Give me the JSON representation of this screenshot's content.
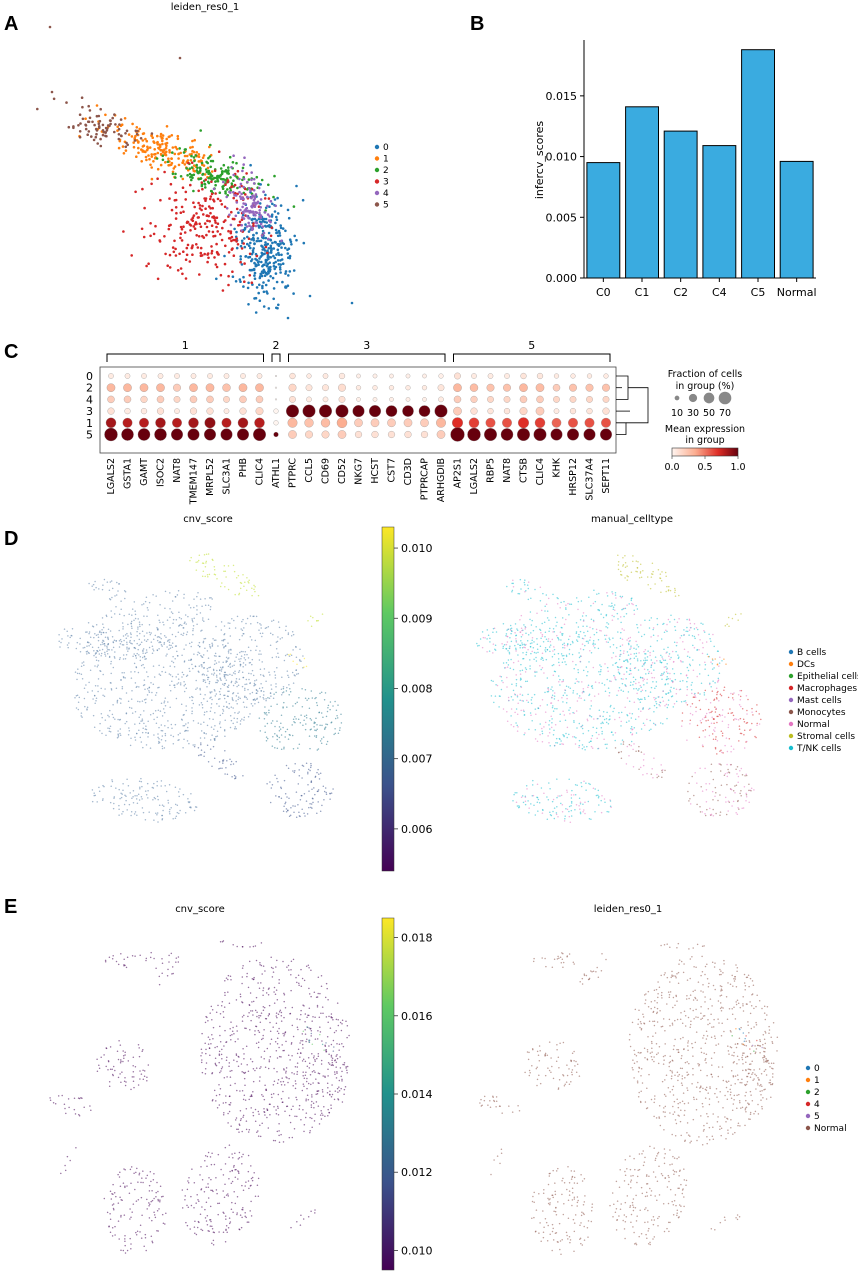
{
  "panels": {
    "A": {
      "letter": "A",
      "chart_data": {
        "type": "scatter",
        "title": "leiden_res0_1",
        "legend_title": "",
        "legend": [
          "0",
          "1",
          "2",
          "3",
          "4",
          "5"
        ],
        "colors": [
          "#1f77b4",
          "#ff7f0e",
          "#2ca02c",
          "#d62728",
          "#9467bd",
          "#8c564b"
        ],
        "legend_placement": "right"
      }
    },
    "B": {
      "letter": "B",
      "chart_data": {
        "type": "bar",
        "categories": [
          "C0",
          "C1",
          "C2",
          "C4",
          "C5",
          "Normal"
        ],
        "values": [
          0.0095,
          0.0141,
          0.0121,
          0.0109,
          0.0188,
          0.0096
        ],
        "ylabel": "infercv_scores",
        "xlabel": "",
        "ylim": [
          0,
          0.0196
        ],
        "yticks": [
          "0.000",
          "0.005",
          "0.010",
          "0.015"
        ],
        "ytick_values": [
          0,
          0.005,
          0.01,
          0.015
        ],
        "bar_color": "#3aabe0"
      }
    },
    "C": {
      "letter": "C",
      "chart_data": {
        "type": "dotplot",
        "rows": [
          "0",
          "2",
          "4",
          "3",
          "1",
          "5"
        ],
        "genes": [
          "LGALS2",
          "GSTA1",
          "GAMT",
          "ISOC2",
          "NAT8",
          "TMEM147",
          "MRPL52",
          "SLC3A1",
          "PHB",
          "CLIC4",
          "ATHL1",
          "PTPRC",
          "CCL5",
          "CD69",
          "CD52",
          "NKG7",
          "HCST",
          "CST7",
          "CD3D",
          "PTPRCAP",
          "ARHGDIB",
          "AP2S1",
          "LGALS2",
          "RBP5",
          "NAT8",
          "CTSB",
          "CLIC4",
          "KHK",
          "HRSP12",
          "SLC37A4",
          "SEPT11"
        ],
        "groups": [
          {
            "label": "1",
            "start": 0,
            "end": 9
          },
          {
            "label": "2",
            "start": 10,
            "end": 10
          },
          {
            "label": "3",
            "start": 11,
            "end": 20
          },
          {
            "label": "5",
            "start": 21,
            "end": 30
          }
        ],
        "size_legend_title_1": "Fraction of cells",
        "size_legend_title_2": "in group (%)",
        "size_legend_values": [
          "10",
          "30",
          "50",
          "70"
        ],
        "color_legend_title_1": "Mean expression",
        "color_legend_title_2": "in group",
        "color_ticks": [
          "0.0",
          "0.5",
          "1.0"
        ],
        "expression": [
          [
            0.05,
            0.05,
            0.05,
            0.05,
            0.05,
            0.05,
            0.05,
            0.05,
            0.05,
            0.05,
            0.0,
            0.08,
            0.05,
            0.06,
            0.06,
            0.03,
            0.03,
            0.03,
            0.03,
            0.03,
            0.03,
            0.1,
            0.05,
            0.05,
            0.05,
            0.08,
            0.07,
            0.05,
            0.05,
            0.05,
            0.05
          ],
          [
            0.3,
            0.3,
            0.3,
            0.3,
            0.2,
            0.3,
            0.3,
            0.25,
            0.3,
            0.3,
            0.0,
            0.15,
            0.08,
            0.08,
            0.12,
            0.05,
            0.05,
            0.05,
            0.05,
            0.05,
            0.08,
            0.3,
            0.28,
            0.25,
            0.25,
            0.3,
            0.28,
            0.2,
            0.25,
            0.25,
            0.25
          ],
          [
            0.2,
            0.2,
            0.15,
            0.2,
            0.15,
            0.2,
            0.2,
            0.15,
            0.2,
            0.2,
            0.0,
            0.1,
            0.05,
            0.05,
            0.1,
            0.03,
            0.03,
            0.03,
            0.03,
            0.03,
            0.05,
            0.2,
            0.18,
            0.15,
            0.15,
            0.2,
            0.2,
            0.15,
            0.15,
            0.15,
            0.15
          ],
          [
            0.1,
            0.05,
            0.05,
            0.1,
            0.05,
            0.1,
            0.1,
            0.05,
            0.1,
            0.15,
            0.0,
            1.0,
            1.0,
            1.0,
            1.0,
            1.0,
            1.0,
            1.0,
            1.0,
            1.0,
            1.0,
            0.2,
            0.1,
            0.08,
            0.08,
            0.15,
            0.2,
            0.05,
            0.08,
            0.08,
            0.1
          ],
          [
            0.85,
            0.8,
            0.8,
            0.85,
            0.8,
            0.85,
            0.9,
            0.8,
            0.85,
            0.8,
            0.0,
            0.3,
            0.25,
            0.28,
            0.35,
            0.2,
            0.2,
            0.2,
            0.2,
            0.2,
            0.3,
            0.7,
            0.65,
            0.6,
            0.6,
            0.7,
            0.65,
            0.55,
            0.6,
            0.6,
            0.6
          ],
          [
            1.0,
            1.0,
            1.0,
            1.0,
            1.0,
            1.0,
            1.0,
            1.0,
            1.0,
            1.0,
            1.0,
            0.2,
            0.15,
            0.15,
            0.2,
            0.1,
            0.1,
            0.1,
            0.1,
            0.1,
            0.2,
            1.0,
            1.0,
            1.0,
            1.0,
            1.0,
            1.0,
            1.0,
            1.0,
            1.0,
            1.0
          ]
        ],
        "fraction": [
          [
            12,
            12,
            12,
            12,
            12,
            12,
            12,
            12,
            12,
            12,
            0,
            15,
            10,
            12,
            15,
            8,
            8,
            8,
            8,
            8,
            10,
            18,
            12,
            12,
            12,
            15,
            15,
            10,
            10,
            10,
            10
          ],
          [
            30,
            30,
            30,
            30,
            25,
            30,
            30,
            28,
            30,
            30,
            0,
            25,
            18,
            18,
            25,
            10,
            10,
            10,
            10,
            10,
            18,
            30,
            28,
            25,
            25,
            30,
            30,
            22,
            25,
            25,
            25
          ],
          [
            22,
            22,
            20,
            22,
            18,
            22,
            22,
            18,
            22,
            22,
            0,
            18,
            12,
            12,
            18,
            8,
            8,
            8,
            8,
            8,
            12,
            22,
            20,
            18,
            18,
            22,
            22,
            18,
            18,
            18,
            18
          ],
          [
            20,
            15,
            15,
            20,
            12,
            20,
            20,
            12,
            20,
            25,
            10,
            70,
            70,
            70,
            70,
            60,
            60,
            55,
            55,
            55,
            70,
            30,
            20,
            15,
            15,
            25,
            30,
            12,
            15,
            15,
            20
          ],
          [
            45,
            40,
            40,
            45,
            40,
            45,
            50,
            40,
            45,
            45,
            10,
            40,
            35,
            35,
            45,
            30,
            30,
            30,
            30,
            30,
            40,
            50,
            45,
            40,
            40,
            50,
            45,
            38,
            40,
            40,
            40
          ],
          [
            75,
            65,
            65,
            65,
            60,
            60,
            60,
            60,
            60,
            70,
            10,
            30,
            25,
            25,
            30,
            20,
            20,
            20,
            20,
            20,
            30,
            85,
            75,
            70,
            65,
            70,
            70,
            60,
            60,
            60,
            60
          ]
        ]
      }
    },
    "D": {
      "letter": "D",
      "left": {
        "chart_data": {
          "type": "scatter",
          "title": "cnv_score",
          "colorbar_ticks": [
            "0.010",
            "0.009",
            "0.008",
            "0.007",
            "0.006"
          ],
          "colorbar_range": [
            0.0054,
            0.0103
          ]
        }
      },
      "right": {
        "chart_data": {
          "type": "scatter",
          "title": "manual_celltype",
          "legend": [
            "B cells",
            "DCs",
            "Epithelial cells",
            "Macrophages",
            "Mast cells",
            "Monocytes",
            "Normal",
            "Stromal cells",
            "T/NK cells"
          ],
          "colors": [
            "#1f77b4",
            "#ff7f0e",
            "#2ca02c",
            "#d62728",
            "#9467bd",
            "#8c564b",
            "#e377c2",
            "#bcbd22",
            "#17becf"
          ],
          "legend_placement": "right"
        }
      }
    },
    "E": {
      "letter": "E",
      "left": {
        "chart_data": {
          "type": "scatter",
          "title": "cnv_score",
          "colorbar_ticks": [
            "0.018",
            "0.016",
            "0.014",
            "0.012",
            "0.010"
          ],
          "colorbar_range": [
            0.0095,
            0.0185
          ]
        }
      },
      "right": {
        "chart_data": {
          "type": "scatter",
          "title": "leiden_res0_1",
          "legend": [
            "0",
            "1",
            "2",
            "4",
            "5",
            "Normal"
          ],
          "colors": [
            "#1f77b4",
            "#ff7f0e",
            "#2ca02c",
            "#d62728",
            "#9467bd",
            "#8c564b"
          ],
          "legend_placement": "right"
        }
      }
    }
  }
}
